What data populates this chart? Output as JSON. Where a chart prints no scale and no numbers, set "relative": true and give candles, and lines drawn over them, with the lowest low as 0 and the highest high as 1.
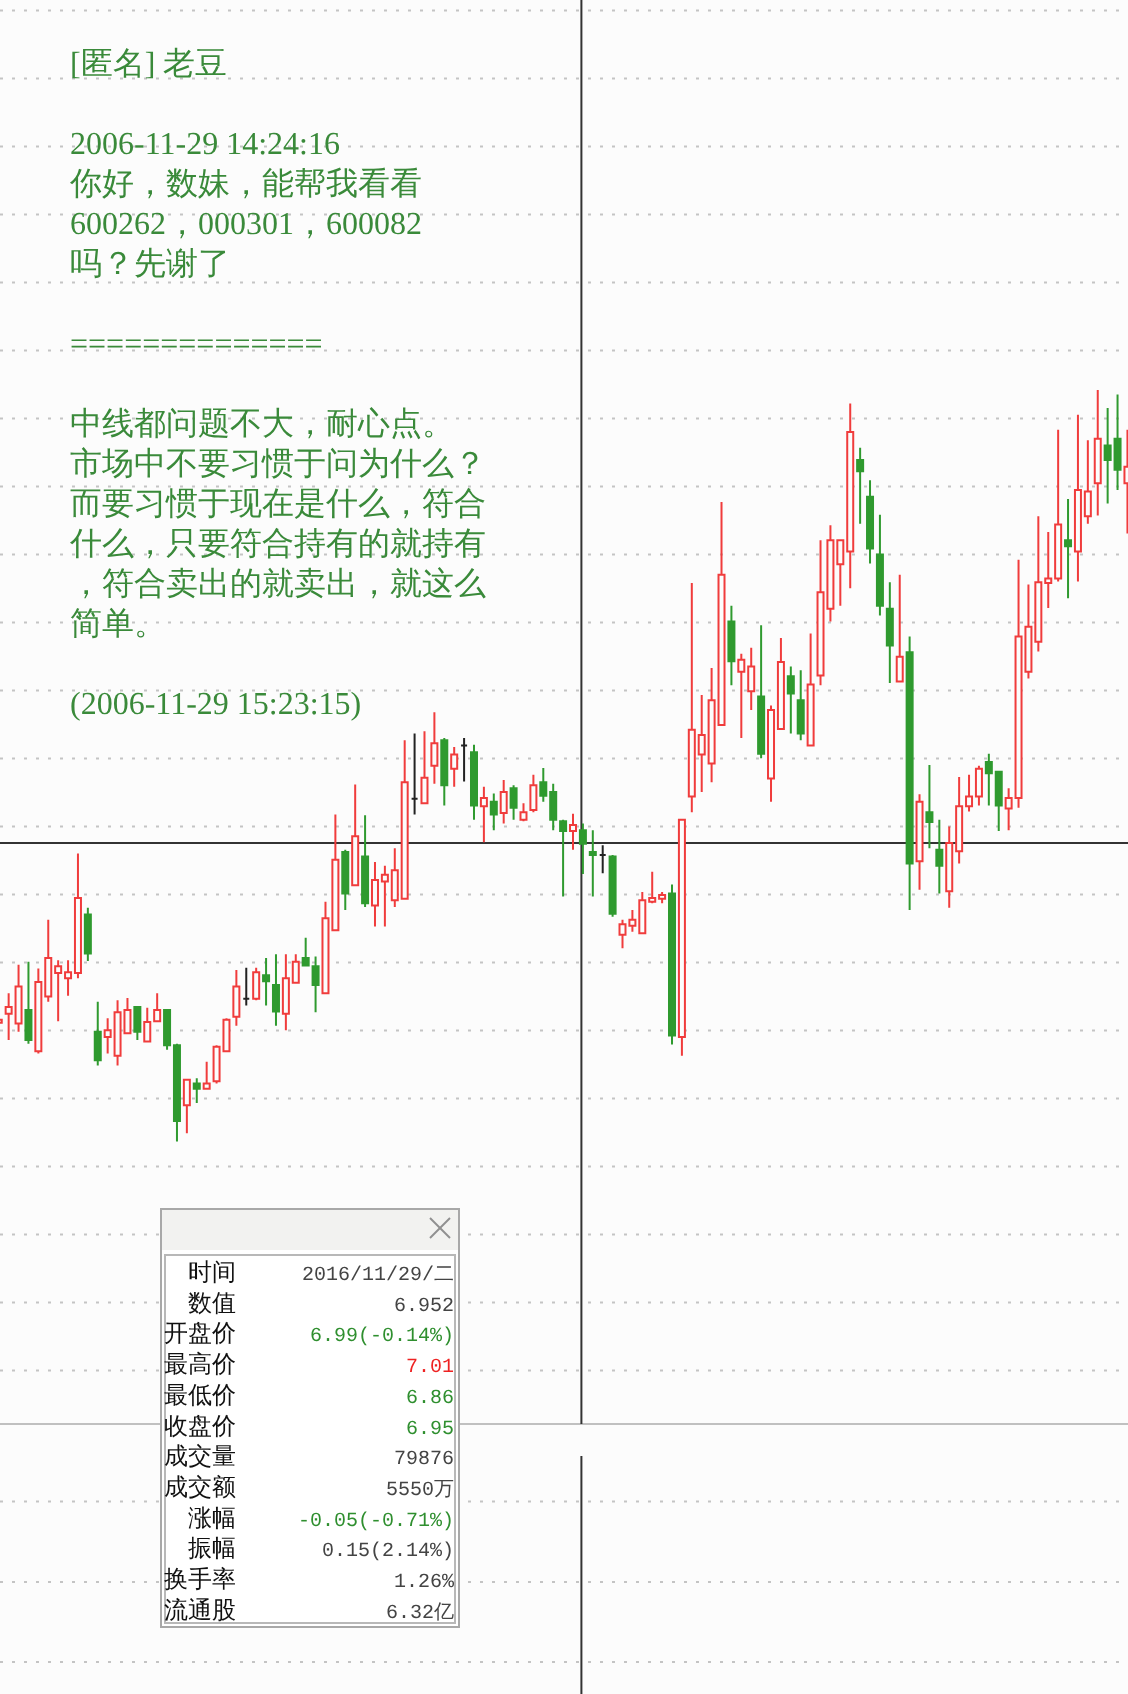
{
  "chart_data": [
    {
      "type": "candlestick",
      "relative": true,
      "grid": "y",
      "categories": [
        null,
        null,
        null,
        null,
        null,
        null,
        null,
        null,
        null,
        null,
        null,
        null,
        null,
        null,
        null,
        null,
        null,
        null,
        null,
        null,
        null,
        null,
        null,
        null,
        null,
        null,
        null,
        null,
        null,
        null,
        null,
        null,
        null,
        null,
        null,
        null,
        null,
        null,
        null,
        null,
        null,
        null,
        null,
        null,
        null,
        null,
        null,
        null,
        null,
        null,
        null,
        null,
        null,
        null,
        null,
        null,
        null,
        null,
        null,
        null,
        null,
        null,
        null,
        null,
        null,
        null,
        null,
        null,
        null,
        null,
        null,
        null,
        null,
        null,
        null,
        null,
        null,
        null,
        null,
        null,
        null,
        null,
        null,
        null,
        null,
        null,
        null,
        null,
        null,
        null,
        null,
        null,
        null,
        null,
        null,
        null,
        null,
        null,
        null,
        null,
        null,
        null,
        null,
        null,
        null,
        null,
        null,
        null,
        null,
        null,
        null,
        null,
        null,
        null,
        null
      ],
      "ohlc": [
        [
          0.158,
          0.163,
          0.156,
          0.162
        ],
        [
          0.17,
          0.197,
          0.135,
          0.179
        ],
        [
          0.157,
          0.235,
          0.146,
          0.206
        ],
        [
          0.175,
          0.239,
          0.13,
          0.135
        ],
        [
          0.12,
          0.23,
          0.117,
          0.212
        ],
        [
          0.193,
          0.295,
          0.186,
          0.244
        ],
        [
          0.224,
          0.241,
          0.16,
          0.233
        ],
        [
          0.217,
          0.241,
          0.194,
          0.225
        ],
        [
          0.224,
          0.383,
          0.217,
          0.324
        ],
        [
          0.302,
          0.311,
          0.24,
          0.25
        ],
        [
          0.146,
          0.186,
          0.101,
          0.108
        ],
        [
          0.139,
          0.164,
          0.117,
          0.148
        ],
        [
          0.114,
          0.188,
          0.101,
          0.172
        ],
        [
          0.144,
          0.191,
          0.144,
          0.175
        ],
        [
          0.179,
          0.179,
          0.135,
          0.146
        ],
        [
          0.133,
          0.178,
          0.133,
          0.159
        ],
        [
          0.16,
          0.197,
          0.16,
          0.175
        ],
        [
          0.175,
          0.175,
          0.122,
          0.128
        ],
        [
          0.128,
          0.13,
          0,
          0.027
        ],
        [
          0.048,
          0.082,
          0.011,
          0.082
        ],
        [
          0.077,
          0.084,
          0.051,
          0.07
        ],
        [
          0.07,
          0.106,
          0.07,
          0.077
        ],
        [
          0.08,
          0.128,
          0.077,
          0.126
        ],
        [
          0.12,
          0.164,
          0.12,
          0.162
        ],
        [
          0.166,
          0.228,
          0.154,
          0.206
        ],
        [
          0.19,
          0.231,
          0.181,
          0.19
        ],
        [
          0.19,
          0.231,
          0.188,
          0.225
        ],
        [
          0.221,
          0.244,
          0.181,
          0.213
        ],
        [
          0.208,
          0.249,
          0.154,
          0.173
        ],
        [
          0.17,
          0.249,
          0.148,
          0.217
        ],
        [
          0.211,
          0.249,
          0.21,
          0.239
        ],
        [
          0.244,
          0.271,
          0.233,
          0.234
        ],
        [
          0.233,
          0.246,
          0.172,
          0.208
        ],
        [
          0.197,
          0.319,
          0.197,
          0.297
        ],
        [
          0.281,
          0.435,
          0.281,
          0.375
        ],
        [
          0.385,
          0.388,
          0.308,
          0.33
        ],
        [
          0.341,
          0.475,
          0.341,
          0.406
        ],
        [
          0.379,
          0.434,
          0.312,
          0.317
        ],
        [
          0.314,
          0.372,
          0.286,
          0.348
        ],
        [
          0.346,
          0.367,
          0.286,
          0.355
        ],
        [
          0.321,
          0.39,
          0.312,
          0.361
        ],
        [
          0.323,
          0.534,
          0.323,
          0.478
        ],
        [
          0.456,
          0.543,
          0.435,
          0.456
        ],
        [
          0.45,
          0.546,
          0.45,
          0.484
        ],
        [
          0.5,
          0.571,
          0.476,
          0.53
        ],
        [
          0.534,
          0.537,
          0.447,
          0.474
        ],
        [
          0.496,
          0.525,
          0.472,
          0.515
        ],
        [
          0.527,
          0.537,
          0.479,
          0.527
        ],
        [
          0.518,
          0.528,
          0.428,
          0.447
        ],
        [
          0.446,
          0.472,
          0.398,
          0.457
        ],
        [
          0.452,
          0.463,
          0.414,
          0.435
        ],
        [
          0.437,
          0.481,
          0.423,
          0.465
        ],
        [
          0.47,
          0.474,
          0.428,
          0.444
        ],
        [
          0.428,
          0.45,
          0.426,
          0.438
        ],
        [
          0.441,
          0.488,
          0.438,
          0.474
        ],
        [
          0.478,
          0.497,
          0.452,
          0.46
        ],
        [
          0.465,
          0.476,
          0.414,
          0.428
        ],
        [
          0.426,
          0.428,
          0.326,
          0.413
        ],
        [
          0.413,
          0.436,
          0.388,
          0.421
        ],
        [
          0.414,
          0.423,
          0.356,
          0.396
        ],
        [
          0.385,
          0.414,
          0.326,
          0.381
        ],
        [
          0.381,
          0.394,
          0.357,
          0.381
        ],
        [
          0.379,
          0.381,
          0.299,
          0.303
        ],
        [
          0.275,
          0.295,
          0.257,
          0.289
        ],
        [
          0.287,
          0.308,
          0.279,
          0.295
        ],
        [
          0.277,
          0.332,
          0.277,
          0.321
        ],
        [
          0.319,
          0.359,
          0.317,
          0.324
        ],
        [
          0.323,
          0.332,
          0.317,
          0.328
        ],
        [
          0.33,
          0.342,
          0.129,
          0.141
        ],
        [
          0.139,
          0.428,
          0.114,
          0.428
        ],
        [
          0.459,
          0.743,
          0.438,
          0.548
        ],
        [
          0.515,
          0.594,
          0.465,
          0.541
        ],
        [
          0.503,
          0.63,
          0.478,
          0.587
        ],
        [
          0.554,
          0.851,
          0.554,
          0.754
        ],
        [
          0.692,
          0.713,
          0.607,
          0.639
        ],
        [
          0.625,
          0.649,
          0.537,
          0.641
        ],
        [
          0.599,
          0.657,
          0.574,
          0.632
        ],
        [
          0.592,
          0.687,
          0.51,
          0.516
        ],
        [
          0.483,
          0.58,
          0.452,
          0.574
        ],
        [
          0.549,
          0.67,
          0.549,
          0.638
        ],
        [
          0.619,
          0.632,
          0.543,
          0.596
        ],
        [
          0.587,
          0.627,
          0.534,
          0.543
        ],
        [
          0.527,
          0.676,
          0.527,
          0.608
        ],
        [
          0.62,
          0.8,
          0.607,
          0.731
        ],
        [
          0.709,
          0.82,
          0.692,
          0.8
        ],
        [
          0.768,
          0.8,
          0.713,
          0.8
        ],
        [
          0.785,
          0.982,
          0.736,
          0.944
        ],
        [
          0.907,
          0.923,
          0.822,
          0.892
        ],
        [
          0.858,
          0.88,
          0.769,
          0.789
        ],
        [
          0.781,
          0.834,
          0.7,
          0.713
        ],
        [
          0.709,
          0.744,
          0.61,
          0.66
        ],
        [
          0.612,
          0.754,
          0.612,
          0.645
        ],
        [
          0.651,
          0.672,
          0.308,
          0.37
        ],
        [
          0.373,
          0.462,
          0.335,
          0.452
        ],
        [
          0.438,
          0.501,
          0.39,
          0.425
        ],
        [
          0.388,
          0.428,
          0.33,
          0.367
        ],
        [
          0.333,
          0.419,
          0.311,
          0.397
        ],
        [
          0.386,
          0.485,
          0.37,
          0.446
        ],
        [
          0.446,
          0.488,
          0.439,
          0.459
        ],
        [
          0.459,
          0.5,
          0.447,
          0.496
        ],
        [
          0.505,
          0.516,
          0.447,
          0.49
        ],
        [
          0.492,
          0.492,
          0.413,
          0.447
        ],
        [
          0.443,
          0.47,
          0.414,
          0.457
        ],
        [
          0.457,
          0.774,
          0.444,
          0.672
        ],
        [
          0.625,
          0.741,
          0.616,
          0.685
        ],
        [
          0.665,
          0.832,
          0.652,
          0.744
        ],
        [
          0.743,
          0.811,
          0.71,
          0.749
        ],
        [
          0.749,
          0.947,
          0.745,
          0.821
        ],
        [
          0.8,
          0.855,
          0.723,
          0.792
        ],
        [
          0.785,
          0.967,
          0.745,
          0.867
        ],
        [
          0.832,
          0.933,
          0.822,
          0.865
        ],
        [
          0.876,
          1,
          0.833,
          0.935
        ],
        [
          0.926,
          0.976,
          0.849,
          0.907
        ],
        [
          0.935,
          0.994,
          0.867,
          0.894
        ],
        [
          0.876,
          0.947,
          0.809,
          0.898
        ]
      ],
      "colors": [
        "#f03c3c",
        "#f03c3c",
        "#f03c3c",
        "#2f9a2f",
        "#f03c3c",
        "#f03c3c",
        "#f03c3c",
        "#f03c3c",
        "#f03c3c",
        "#2f9a2f",
        "#2f9a2f",
        "#f03c3c",
        "#f03c3c",
        "#f03c3c",
        "#2f9a2f",
        "#f03c3c",
        "#f03c3c",
        "#2f9a2f",
        "#2f9a2f",
        "#f03c3c",
        "#2f9a2f",
        "#f03c3c",
        "#f03c3c",
        "#f03c3c",
        "#f03c3c",
        "#222222",
        "#f03c3c",
        "#2f9a2f",
        "#2f9a2f",
        "#f03c3c",
        "#f03c3c",
        "#2f9a2f",
        "#2f9a2f",
        "#f03c3c",
        "#f03c3c",
        "#2f9a2f",
        "#f03c3c",
        "#2f9a2f",
        "#f03c3c",
        "#f03c3c",
        "#f03c3c",
        "#f03c3c",
        "#222222",
        "#f03c3c",
        "#f03c3c",
        "#2f9a2f",
        "#f03c3c",
        "#222222",
        "#2f9a2f",
        "#f03c3c",
        "#2f9a2f",
        "#f03c3c",
        "#2f9a2f",
        "#f03c3c",
        "#f03c3c",
        "#2f9a2f",
        "#2f9a2f",
        "#2f9a2f",
        "#f03c3c",
        "#2f9a2f",
        "#2f9a2f",
        "#222222",
        "#2f9a2f",
        "#f03c3c",
        "#f03c3c",
        "#f03c3c",
        "#f03c3c",
        "#f03c3c",
        "#2f9a2f",
        "#f03c3c",
        "#f03c3c",
        "#f03c3c",
        "#f03c3c",
        "#f03c3c",
        "#2f9a2f",
        "#f03c3c",
        "#f03c3c",
        "#2f9a2f",
        "#f03c3c",
        "#f03c3c",
        "#2f9a2f",
        "#2f9a2f",
        "#f03c3c",
        "#f03c3c",
        "#f03c3c",
        "#f03c3c",
        "#f03c3c",
        "#2f9a2f",
        "#2f9a2f",
        "#2f9a2f",
        "#2f9a2f",
        "#f03c3c",
        "#2f9a2f",
        "#f03c3c",
        "#2f9a2f",
        "#2f9a2f",
        "#f03c3c",
        "#f03c3c",
        "#f03c3c",
        "#f03c3c",
        "#2f9a2f",
        "#2f9a2f",
        "#f03c3c",
        "#f03c3c",
        "#f03c3c",
        "#f03c3c",
        "#f03c3c",
        "#f03c3c",
        "#2f9a2f",
        "#f03c3c",
        "#f03c3c",
        "#f03c3c",
        "#2f9a2f",
        "#2f9a2f",
        "#f03c3c"
      ],
      "ref_lines": [
        {
          "axis": "y",
          "value": 0.397
        }
      ],
      "annotations": [
        "[匿名] 老豆",
        "2006-11-29 14:24:16",
        "你好，数妹，能帮我看看",
        "600262，000301，600082",
        "吗？先谢了",
        "==============",
        "中线都问题不大，耐心点。",
        "市场中不要习惯于问为什么？",
        "而要习惯于现在是什么，符合",
        "什么，只要符合持有的就持有",
        "，符合卖出的就卖出，就这么",
        "简单。",
        "(2006-11-29 15:23:15)"
      ]
    },
    {
      "type": "other",
      "annotations": [
        "时间",
        "2016/11/29/二",
        "数值",
        "6.952",
        "开盘价",
        "6.99(-0.14%)",
        "最高价",
        "7.01",
        "最低价",
        "6.86",
        "收盘价",
        "6.95",
        "成交量",
        "79876",
        "成交额",
        "5550万",
        "涨幅",
        "-0.05(-0.71%)",
        "振幅",
        "0.15(2.14%)",
        "换手率",
        "1.26%",
        "流通股",
        "6.32亿"
      ]
    }
  ]
}
